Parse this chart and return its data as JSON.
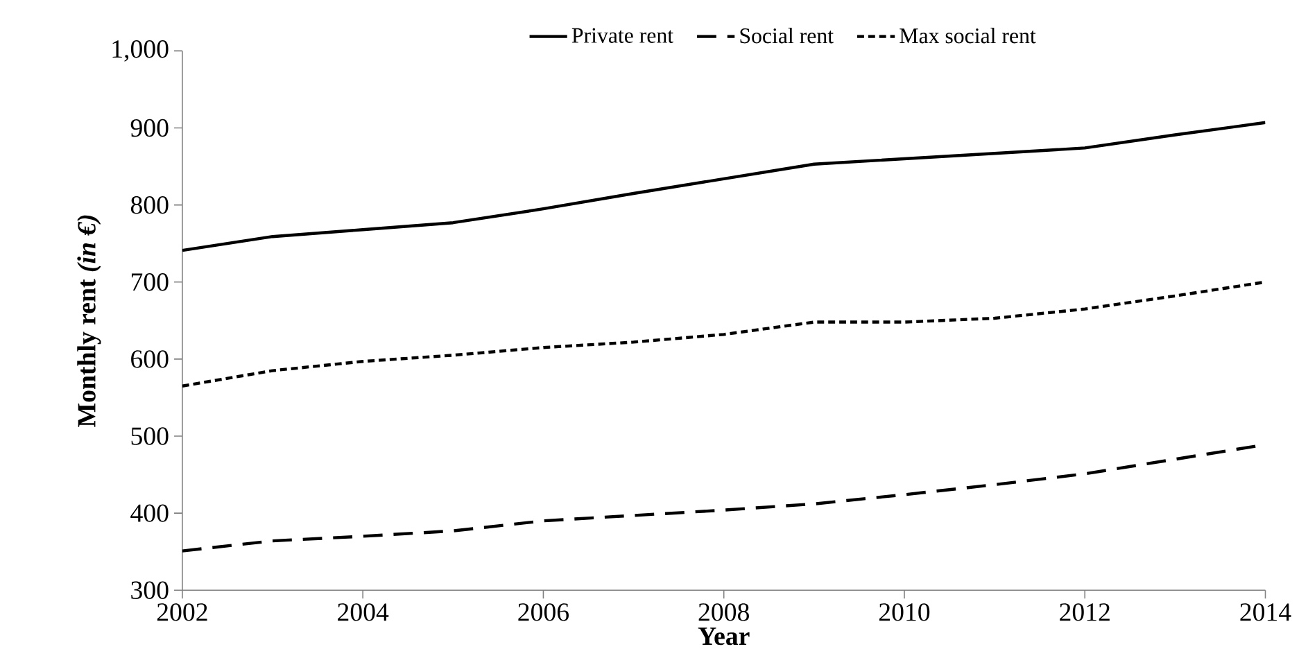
{
  "chart_data": {
    "type": "line",
    "xlabel": "Year",
    "ylabel": "Monthly rent *(in €)*",
    "x": [
      2002,
      2003,
      2004,
      2005,
      2006,
      2007,
      2008,
      2009,
      2010,
      2011,
      2012,
      2013,
      2014
    ],
    "series": [
      {
        "name": "Private rent",
        "color": "#000000",
        "line_style": "solid",
        "values": [
          741,
          759,
          768,
          777,
          795,
          815,
          834,
          853,
          860,
          867,
          874,
          891,
          907
        ]
      },
      {
        "name": "Social rent",
        "color": "#000000",
        "line_style": "dashed",
        "values": [
          351,
          364,
          370,
          377,
          390,
          397,
          404,
          412,
          424,
          437,
          451,
          470,
          489
        ]
      },
      {
        "name": "Max social rent",
        "color": "#000000",
        "line_style": "dotted",
        "values": [
          565,
          585,
          597,
          605,
          615,
          622,
          632,
          648,
          648,
          653,
          665,
          682,
          700
        ]
      }
    ],
    "xlim": [
      2002,
      2014
    ],
    "xticks": [
      2002,
      2004,
      2006,
      2008,
      2010,
      2012,
      2014
    ],
    "ylim": [
      300,
      1000
    ],
    "yticks": [
      300,
      400,
      500,
      600,
      700,
      800,
      900,
      {
        "value": 1000,
        "label": "1,000"
      }
    ],
    "grid": false,
    "legend": "top",
    "marker": "none"
  }
}
